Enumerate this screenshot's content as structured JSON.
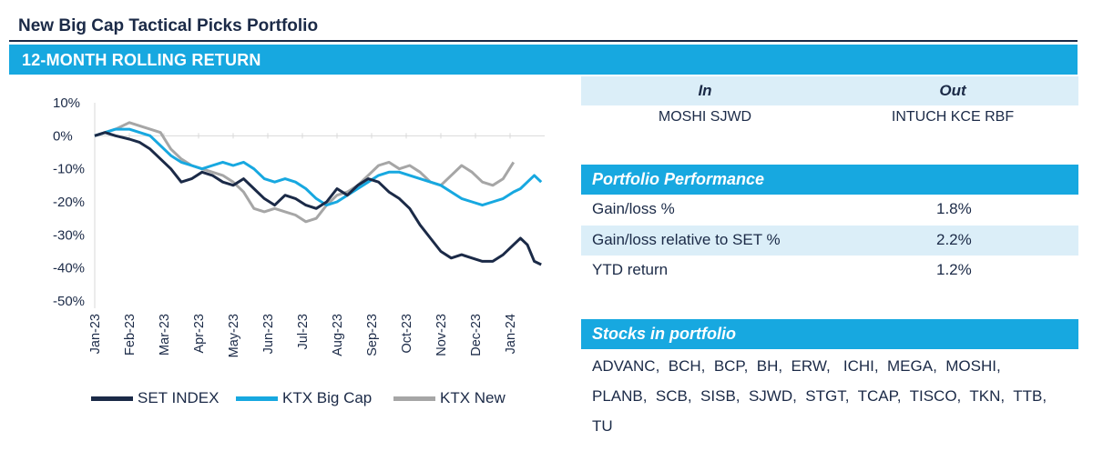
{
  "title": "New Big Cap Tactical Picks Portfolio",
  "section_title": "12-MONTH ROLLING RETURN",
  "colors": {
    "accent": "#17a8e0",
    "navy": "#1b2a47",
    "light": "#dbeef8",
    "gray": "#a6a6a6"
  },
  "in_out": {
    "in_label": "In",
    "out_label": "Out",
    "in_value": "MOSHI SJWD",
    "out_value": "INTUCH KCE RBF"
  },
  "performance": {
    "title": "Portfolio Performance",
    "rows": [
      {
        "label": "Gain/loss %",
        "value": "1.8%"
      },
      {
        "label": "Gain/loss relative to SET %",
        "value": "2.2%"
      },
      {
        "label": "YTD return",
        "value": "1.2%"
      }
    ]
  },
  "stocks": {
    "title": "Stocks in portfolio",
    "lines": [
      "ADVANC,  BCH,  BCP,  BH,  ERW,   ICHI,  MEGA,  MOSHI,",
      "PLANB,  SCB,  SISB,  SJWD,  STGT,  TCAP,  TISCO,  TKN,  TTB,",
      "TU"
    ]
  },
  "chart_data": {
    "type": "line",
    "title": "12-MONTH ROLLING RETURN",
    "ylim": [
      -50,
      10
    ],
    "yticks": [
      10,
      0,
      -10,
      -20,
      -30,
      -40,
      -50
    ],
    "ytick_labels": [
      "10%",
      "0%",
      "-10%",
      "-20%",
      "-30%",
      "-40%",
      "-50%"
    ],
    "xlim": [
      0,
      13
    ],
    "x_tick_labels": [
      "Jan-23",
      "Feb-23",
      "Mar-23",
      "Apr-23",
      "May-23",
      "Jun-23",
      "Jul-23",
      "Aug-23",
      "Sep-23",
      "Oct-23",
      "Nov-23",
      "Dec-23",
      "Jan-24"
    ],
    "legend_position": "bottom",
    "series": [
      {
        "name": "SET INDEX",
        "color": "#1b2a47",
        "x": [
          0,
          0.3,
          0.6,
          1.0,
          1.3,
          1.6,
          1.9,
          2.2,
          2.5,
          2.8,
          3.1,
          3.4,
          3.7,
          4.0,
          4.3,
          4.6,
          4.9,
          5.2,
          5.5,
          5.8,
          6.1,
          6.4,
          6.7,
          7.0,
          7.3,
          7.6,
          7.9,
          8.2,
          8.5,
          8.8,
          9.1,
          9.4,
          9.7,
          10.0,
          10.3,
          10.6,
          10.9,
          11.2,
          11.5,
          11.8,
          12.1,
          12.3,
          12.5,
          12.7,
          12.9
        ],
        "y": [
          0,
          1,
          0,
          -1,
          -2,
          -4,
          -7,
          -10,
          -14,
          -13,
          -11,
          -12,
          -14,
          -15,
          -13,
          -16,
          -19,
          -21,
          -18,
          -19,
          -21,
          -22,
          -20,
          -16,
          -18,
          -15,
          -13,
          -14,
          -17,
          -19,
          -22,
          -27,
          -31,
          -35,
          -37,
          -36,
          -37,
          -38,
          -38,
          -36,
          -33,
          -31,
          -33,
          -38,
          -39
        ]
      },
      {
        "name": "KTX Big Cap",
        "color": "#17a8e0",
        "x": [
          0,
          0.3,
          0.6,
          1.0,
          1.3,
          1.6,
          1.9,
          2.2,
          2.5,
          2.8,
          3.1,
          3.4,
          3.7,
          4.0,
          4.3,
          4.6,
          4.9,
          5.2,
          5.5,
          5.8,
          6.1,
          6.4,
          6.7,
          7.0,
          7.3,
          7.6,
          7.9,
          8.2,
          8.5,
          8.8,
          9.1,
          9.4,
          9.7,
          10.0,
          10.3,
          10.6,
          10.9,
          11.2,
          11.5,
          11.8,
          12.1,
          12.3,
          12.5,
          12.7,
          12.9
        ],
        "y": [
          0,
          1,
          2,
          2,
          1,
          0,
          -3,
          -6,
          -8,
          -9,
          -10,
          -9,
          -8,
          -9,
          -8,
          -10,
          -13,
          -14,
          -13,
          -14,
          -16,
          -19,
          -21,
          -20,
          -18,
          -16,
          -14,
          -12,
          -11,
          -11,
          -12,
          -13,
          -14,
          -15,
          -17,
          -19,
          -20,
          -21,
          -20,
          -19,
          -17,
          -16,
          -14,
          -12,
          -14
        ]
      },
      {
        "name": "KTX New",
        "color": "#a6a6a6",
        "x": [
          0,
          0.3,
          0.6,
          1.0,
          1.3,
          1.6,
          1.9,
          2.2,
          2.5,
          2.8,
          3.1,
          3.4,
          3.7,
          4.0,
          4.3,
          4.6,
          4.9,
          5.2,
          5.5,
          5.8,
          6.1,
          6.4,
          6.7,
          7.0,
          7.3,
          7.6,
          7.9,
          8.2,
          8.5,
          8.8,
          9.1,
          9.4,
          9.7,
          10.0,
          10.3,
          10.6,
          10.9,
          11.2,
          11.5,
          11.8,
          12.1
        ],
        "y": [
          0,
          1,
          2,
          4,
          3,
          2,
          1,
          -4,
          -7,
          -9,
          -10,
          -11,
          -12,
          -14,
          -17,
          -22,
          -23,
          -22,
          -23,
          -24,
          -26,
          -25,
          -21,
          -18,
          -17,
          -15,
          -12,
          -9,
          -8,
          -10,
          -9,
          -11,
          -14,
          -15,
          -12,
          -9,
          -11,
          -14,
          -15,
          -13,
          -8
        ]
      }
    ]
  }
}
